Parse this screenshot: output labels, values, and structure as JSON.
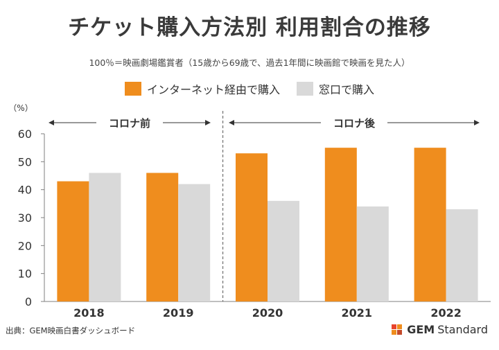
{
  "header": {
    "title": "チケット購入方法別 利用割合の推移",
    "subtitle": "100％＝映画劇場鑑賞者（15歳から69歳で、過去1年間に映画館で映画を見た人）"
  },
  "chart_data": {
    "type": "bar",
    "categories": [
      "2018",
      "2019",
      "2020",
      "2021",
      "2022"
    ],
    "series": [
      {
        "name": "インターネット経由で購入",
        "values": [
          43,
          46,
          53,
          55,
          55
        ],
        "color": "#ef8d1e"
      },
      {
        "name": "窓口で購入",
        "values": [
          46,
          42,
          36,
          34,
          33
        ],
        "color": "#d9d9d9"
      }
    ],
    "yunit": "（%）",
    "ylim": [
      0,
      60
    ],
    "yticks": [
      0,
      10,
      20,
      30,
      40,
      50,
      60
    ],
    "periods": [
      {
        "label": "コロナ前",
        "categories": [
          "2018",
          "2019"
        ]
      },
      {
        "label": "コロナ後",
        "categories": [
          "2020",
          "2021",
          "2022"
        ]
      }
    ]
  },
  "footer": {
    "source": "出典：GEM映画白書ダッシュボード",
    "brand_bold": "GEM",
    "brand_rest": "Standard",
    "logo_colors": [
      "#e8432c",
      "#ef8d1e",
      "#c44a2a"
    ]
  }
}
